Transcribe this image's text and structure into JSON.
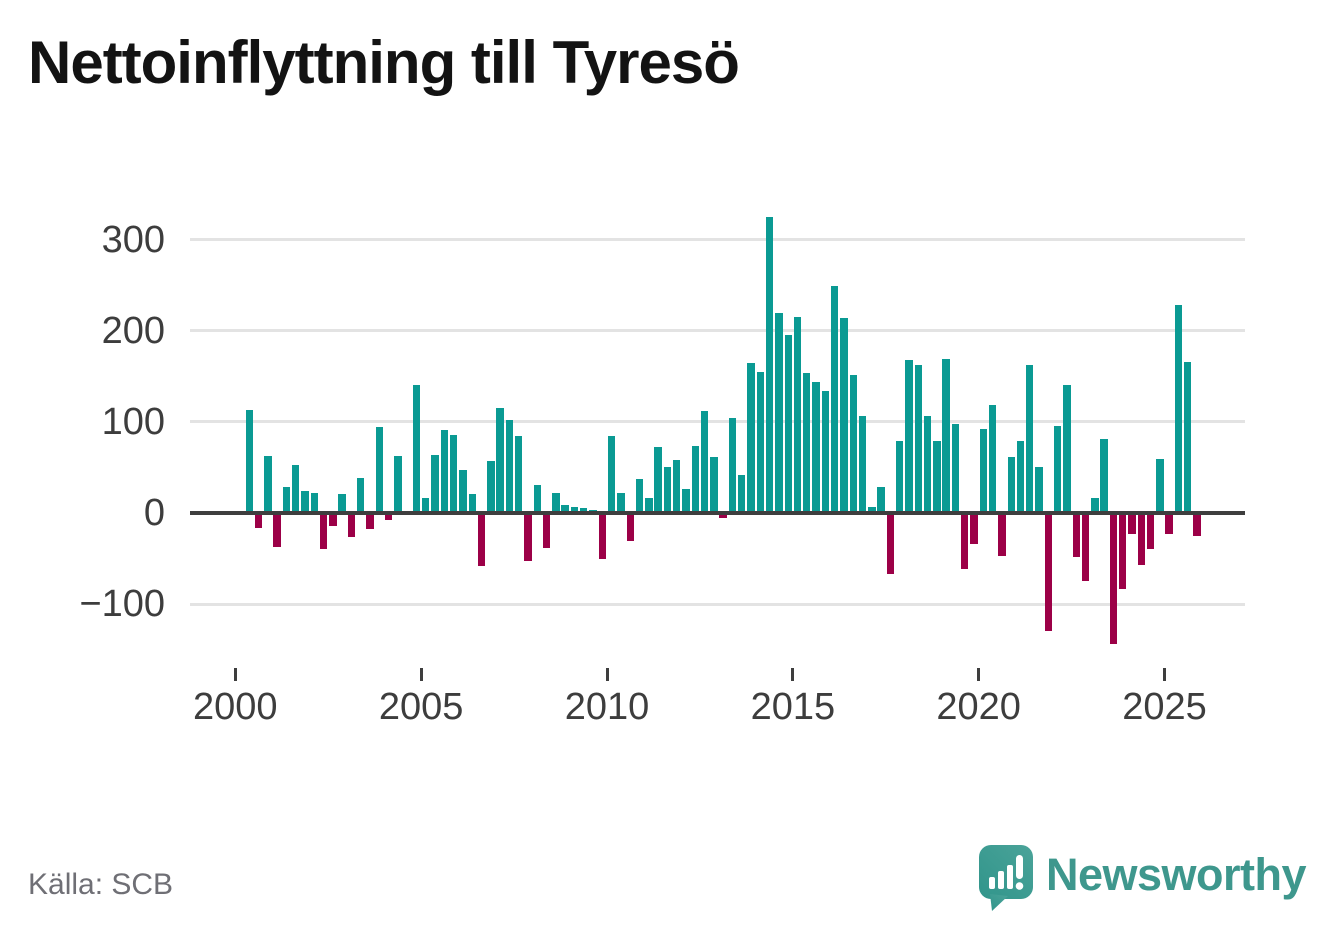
{
  "title": "Nettoinflyttning till Tyresö",
  "source": "Källa: SCB",
  "branding": {
    "name": "Newsworthy",
    "icon": "newsworthy-logo-icon"
  },
  "colors": {
    "positive_bar": "#0a9a93",
    "negative_bar": "#9c0047",
    "axis_line": "#3e3e3e",
    "gridline": "#e3e3e3",
    "tick_label": "#3d3d3d",
    "title_text": "#131313",
    "source_text": "#6f6f75",
    "brand_teal": "#3e978d"
  },
  "chart_data": {
    "type": "bar",
    "title": "Nettoinflyttning till Tyresö",
    "xlabel": "",
    "ylabel": "",
    "frequency": "quarterly",
    "x_start": "2000-Q2",
    "x_end": "2025-Q4",
    "ylim": [
      -160,
      345
    ],
    "grid": "horizontal",
    "legend": "none",
    "y_ticks": [
      {
        "value": 300,
        "label": "300"
      },
      {
        "value": 200,
        "label": "200"
      },
      {
        "value": 100,
        "label": "100"
      },
      {
        "value": 0,
        "label": "0"
      },
      {
        "value": -100,
        "label": "−100"
      }
    ],
    "x_ticks": [
      {
        "year": 2000,
        "label": "2000"
      },
      {
        "year": 2005,
        "label": "2005"
      },
      {
        "year": 2010,
        "label": "2010"
      },
      {
        "year": 2015,
        "label": "2015"
      },
      {
        "year": 2020,
        "label": "2020"
      },
      {
        "year": 2025,
        "label": "2025"
      }
    ],
    "start_year": 2000,
    "start_quarter": 2,
    "values": [
      113,
      -17,
      63,
      -37,
      28,
      53,
      24,
      22,
      -40,
      -14,
      21,
      -26,
      38,
      -18,
      94,
      -8,
      63,
      0,
      140,
      16,
      64,
      91,
      86,
      47,
      21,
      -58,
      57,
      115,
      102,
      85,
      -53,
      31,
      -38,
      22,
      9,
      7,
      6,
      3,
      -51,
      85,
      22,
      -31,
      37,
      17,
      72,
      50,
      58,
      26,
      73,
      112,
      62,
      -5,
      104,
      42,
      165,
      155,
      325,
      220,
      195,
      215,
      154,
      144,
      134,
      249,
      214,
      152,
      107,
      7,
      29,
      -67,
      79,
      168,
      162,
      107,
      79,
      169,
      98,
      -61,
      -34,
      92,
      119,
      -47,
      61,
      79,
      163,
      50,
      -130,
      96,
      140,
      -48,
      -75,
      16,
      81,
      -144,
      -83,
      -23,
      -57,
      -40,
      59,
      -23,
      228,
      166,
      -25
    ]
  }
}
